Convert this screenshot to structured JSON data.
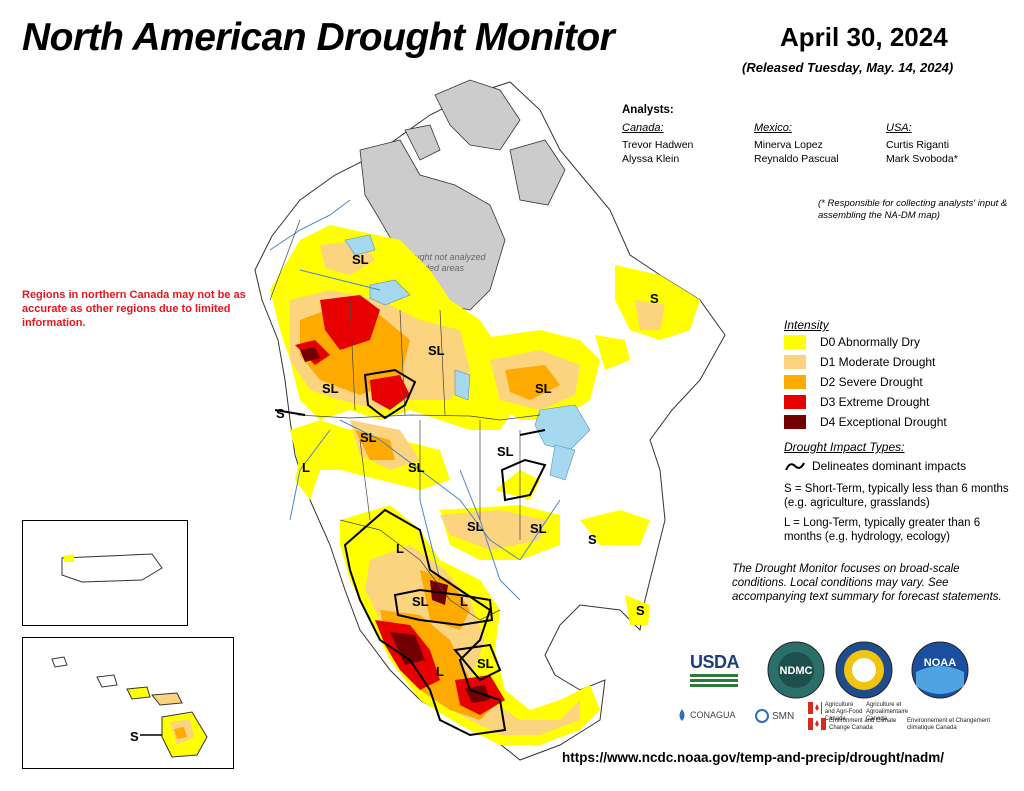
{
  "header": {
    "title": "North American Drought Monitor",
    "date": "April 30, 2024",
    "released": "(Released Tuesday, May. 14, 2024)"
  },
  "analysts": {
    "heading": "Analysts:",
    "countries": [
      {
        "name": "Canada:",
        "people": [
          "Trevor Hadwen",
          "Alyssa Klein"
        ]
      },
      {
        "name": "Mexico:",
        "people": [
          "Minerva Lopez",
          "Reynaldo Pascual"
        ]
      },
      {
        "name": "USA:",
        "people": [
          "Curtis Riganti",
          "Mark Svoboda*"
        ]
      }
    ],
    "note": "(* Responsible for collecting analysts' input & assembling the NA-DM map)"
  },
  "warning": "Regions in northern Canada may not be as accurate as other regions due to limited information.",
  "map": {
    "shaded_note_line1": "Drought not analyzed",
    "shaded_note_line2": "in shaded areas",
    "labels": [
      "SL",
      "SL",
      "SL",
      "SL",
      "S",
      "SL",
      "L",
      "SL",
      "SL",
      "SL",
      "SL",
      "S",
      "L",
      "SL",
      "L",
      "SL",
      "L",
      "S",
      "S"
    ]
  },
  "legend": {
    "intensity_heading": "Intensity",
    "items": [
      {
        "label": "D0 Abnormally Dry",
        "color": "#ffff00"
      },
      {
        "label": "D1 Moderate Drought",
        "color": "#fcd37f"
      },
      {
        "label": "D2 Severe Drought",
        "color": "#ffaa00"
      },
      {
        "label": "D3 Extreme Drought",
        "color": "#e60000"
      },
      {
        "label": "D4 Exceptional Drought",
        "color": "#730000"
      }
    ],
    "impact_heading": "Drought Impact Types:",
    "impact_line": "Delineates dominant impacts",
    "short_term": "S = Short-Term, typically less than 6 months (e.g. agriculture, grasslands)",
    "long_term": "L = Long-Term, typically greater than 6 months (e.g. hydrology, ecology)"
  },
  "focus_note": "The Drought Monitor focuses on broad-scale conditions. Local conditions may vary. See accompanying text summary for forecast statements.",
  "logos": {
    "usda": "USDA",
    "ndmc": "NDMC",
    "noaa": "NOAA",
    "conagua": "CONAGUA",
    "smn": "SMN",
    "agri_en": "Agriculture and Agri-Food Canada",
    "agri_fr": "Agriculture et Agroalimentaire Canada",
    "env_en": "Environment and Climate Change Canada",
    "env_fr": "Environnement et Changement climatique Canada"
  },
  "hawaii_label": "S",
  "url": "https://www.ncdc.noaa.gov/temp-and-precip/drought/nadm/"
}
